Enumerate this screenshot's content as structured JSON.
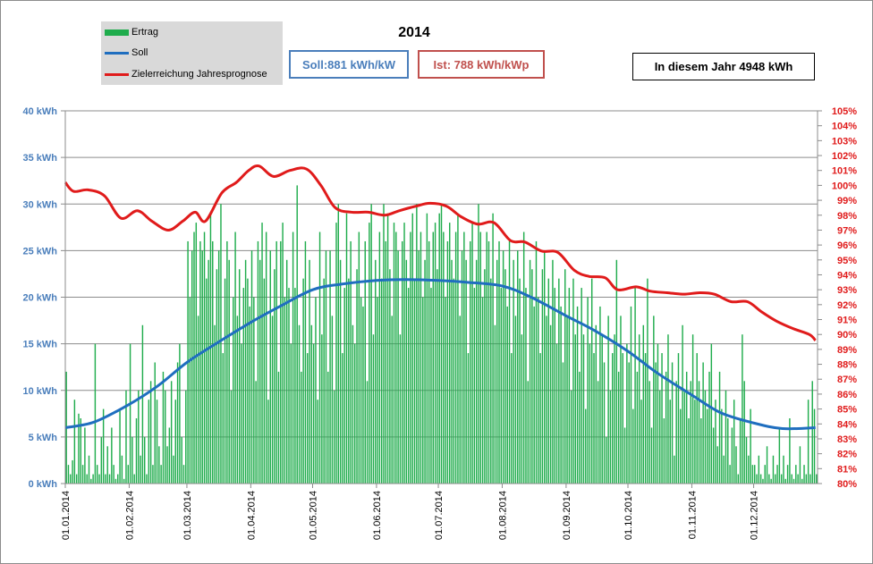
{
  "chart_data": {
    "type": "bar",
    "title": "2014",
    "legend": {
      "placement": "top-left",
      "entries": [
        {
          "label": "Ertrag",
          "color": "#1fac4c",
          "kind": "bar"
        },
        {
          "label": "Soll",
          "color": "#1f6ebf",
          "kind": "line"
        },
        {
          "label": "Zielerreichung Jahresprognose",
          "color": "#e01b1b",
          "kind": "line"
        }
      ]
    },
    "info": {
      "soll": "Soll:881 kWh/kW",
      "ist": "Ist: 788 kWh/kWp",
      "year": "In diesem Jahr 4948 kWh"
    },
    "x_axis": {
      "type": "date",
      "range": [
        "01.01.2014",
        "31.12.2014"
      ],
      "tick_labels": [
        "01.01.2014",
        "01.02.2014",
        "01.03.2014",
        "01.04.2014",
        "01.05.2014",
        "01.06.2014",
        "01.07.2014",
        "01.08.2014",
        "01.09.2014",
        "01.10.2014",
        "01.11.2014",
        "01.12.2014"
      ]
    },
    "y_axis_left": {
      "range": [
        0,
        40
      ],
      "unit": "kWh",
      "tick_labels": [
        "0 kWh",
        "5 kWh",
        "10 kWh",
        "15 kWh",
        "20 kWh",
        "25 kWh",
        "30 kWh",
        "35 kWh",
        "40 kWh"
      ]
    },
    "y_axis_right": {
      "range": [
        80,
        105
      ],
      "unit": "%",
      "tick_labels": [
        "80%",
        "81%",
        "82%",
        "83%",
        "84%",
        "85%",
        "86%",
        "87%",
        "88%",
        "89%",
        "90%",
        "91%",
        "92%",
        "93%",
        "94%",
        "95%",
        "96%",
        "97%",
        "98%",
        "99%",
        "100%",
        "101%",
        "102%",
        "103%",
        "104%",
        "105%"
      ]
    },
    "grid": true,
    "series": [
      {
        "name": "Ertrag",
        "axis": "left",
        "kind": "bar",
        "color": "#1fac4c",
        "monthly_daily_values": [
          [
            12,
            2,
            1,
            2.5,
            9,
            1,
            7.5,
            7,
            2,
            6,
            1,
            3,
            0.5,
            1,
            15,
            2,
            1,
            5,
            8,
            1,
            4,
            1,
            6,
            2,
            0.5,
            1,
            8,
            3,
            0.5,
            10,
            2
          ],
          [
            15,
            5,
            1,
            7,
            10,
            3,
            17,
            5,
            1,
            9,
            11,
            2,
            13,
            9,
            4,
            2,
            12,
            10,
            4,
            6,
            11,
            3,
            9,
            13,
            15,
            5,
            2,
            10
          ],
          [
            26,
            20,
            25,
            27,
            28,
            18,
            26,
            25,
            27,
            22,
            24,
            29,
            26,
            17,
            23,
            25,
            30,
            14,
            22,
            26,
            24,
            10,
            20,
            27,
            18,
            23,
            15,
            21,
            24,
            22,
            19
          ],
          [
            25,
            20,
            11,
            26,
            24,
            28,
            22,
            27,
            9,
            25,
            18,
            23,
            26,
            12,
            26,
            28,
            20,
            24,
            21,
            15,
            27,
            21,
            32,
            17,
            12,
            22,
            26,
            14,
            24,
            17
          ],
          [
            15,
            20,
            9,
            27,
            16,
            22,
            25,
            12,
            25,
            18,
            10,
            28,
            30,
            24,
            14,
            21,
            29,
            22,
            26,
            17,
            15,
            23,
            27,
            20,
            19,
            26,
            11,
            28,
            30,
            16,
            24
          ],
          [
            20,
            27,
            22,
            30,
            26,
            29,
            23,
            18,
            28,
            27,
            25,
            16,
            26,
            28,
            24,
            21,
            27,
            29,
            22,
            30,
            25,
            27,
            20,
            24,
            29,
            26,
            21,
            27,
            28,
            23
          ],
          [
            29,
            30,
            27,
            20,
            26,
            28,
            24,
            22,
            27,
            29,
            18,
            25,
            27,
            24,
            14,
            26,
            28,
            21,
            24,
            30,
            27,
            20,
            23,
            27,
            26,
            22,
            29,
            17,
            24,
            26,
            21
          ],
          [
            25,
            23,
            19,
            26,
            14,
            24,
            18,
            25,
            22,
            16,
            27,
            21,
            11,
            24,
            23,
            19,
            26,
            20,
            14,
            23,
            25,
            18,
            22,
            17,
            24,
            21,
            15,
            22,
            19,
            13,
            23
          ],
          [
            18,
            21,
            10,
            22,
            16,
            19,
            12,
            21,
            16,
            8,
            20,
            15,
            22,
            14,
            17,
            11,
            19,
            16,
            13,
            5,
            18,
            10,
            14,
            16,
            24,
            12,
            18,
            14,
            6,
            15
          ],
          [
            13,
            19,
            8,
            21,
            12,
            16,
            9,
            17,
            14,
            22,
            11,
            6,
            18,
            13,
            15,
            10,
            14,
            7,
            12,
            16,
            9,
            13,
            3,
            11,
            14,
            8,
            17,
            10,
            12,
            7,
            11
          ],
          [
            16,
            9,
            14,
            11,
            7,
            13,
            10,
            8,
            12,
            15,
            6,
            9,
            4,
            12,
            8,
            3,
            10,
            7,
            2,
            6,
            9,
            4,
            1,
            7,
            16,
            11,
            5,
            3,
            8,
            2
          ],
          [
            2,
            1,
            3,
            1,
            0.5,
            2,
            4,
            1,
            0.5,
            3,
            1,
            2,
            6,
            1,
            3,
            0.5,
            2,
            7,
            1,
            0.5,
            2,
            1,
            4,
            0.5,
            2,
            1,
            9,
            1,
            11,
            8,
            1
          ]
        ]
      },
      {
        "name": "Soll",
        "axis": "left",
        "kind": "line",
        "color": "#1f6ebf",
        "points": [
          {
            "x": "01.01.2014",
            "y": 6.0
          },
          {
            "x": "15.01.2014",
            "y": 6.6
          },
          {
            "x": "01.02.2014",
            "y": 8.5
          },
          {
            "x": "15.02.2014",
            "y": 10.5
          },
          {
            "x": "01.03.2014",
            "y": 13.0
          },
          {
            "x": "15.03.2014",
            "y": 15.0
          },
          {
            "x": "01.04.2014",
            "y": 17.3
          },
          {
            "x": "15.04.2014",
            "y": 19.0
          },
          {
            "x": "01.05.2014",
            "y": 20.8
          },
          {
            "x": "15.05.2014",
            "y": 21.4
          },
          {
            "x": "01.06.2014",
            "y": 21.8
          },
          {
            "x": "15.06.2014",
            "y": 21.9
          },
          {
            "x": "01.07.2014",
            "y": 21.8
          },
          {
            "x": "15.07.2014",
            "y": 21.6
          },
          {
            "x": "01.08.2014",
            "y": 21.2
          },
          {
            "x": "15.08.2014",
            "y": 20.0
          },
          {
            "x": "01.09.2014",
            "y": 18.0
          },
          {
            "x": "15.09.2014",
            "y": 16.4
          },
          {
            "x": "01.10.2014",
            "y": 14.2
          },
          {
            "x": "15.10.2014",
            "y": 11.9
          },
          {
            "x": "01.11.2014",
            "y": 9.5
          },
          {
            "x": "15.11.2014",
            "y": 7.6
          },
          {
            "x": "01.12.2014",
            "y": 6.5
          },
          {
            "x": "15.12.2014",
            "y": 5.9
          },
          {
            "x": "31.12.2014",
            "y": 6.0
          }
        ]
      },
      {
        "name": "Zielerreichung Jahresprognose",
        "axis": "right",
        "kind": "line",
        "color": "#e01b1b",
        "points": [
          {
            "x": "01.01.2014",
            "y": 100.2
          },
          {
            "x": "05.01.2014",
            "y": 99.6
          },
          {
            "x": "12.01.2014",
            "y": 99.7
          },
          {
            "x": "20.01.2014",
            "y": 99.3
          },
          {
            "x": "28.01.2014",
            "y": 97.8
          },
          {
            "x": "05.02.2014",
            "y": 98.3
          },
          {
            "x": "12.02.2014",
            "y": 97.6
          },
          {
            "x": "20.02.2014",
            "y": 97.0
          },
          {
            "x": "27.02.2014",
            "y": 97.6
          },
          {
            "x": "05.03.2014",
            "y": 98.2
          },
          {
            "x": "10.03.2014",
            "y": 97.6
          },
          {
            "x": "18.03.2014",
            "y": 99.5
          },
          {
            "x": "25.03.2014",
            "y": 100.2
          },
          {
            "x": "31.03.2014",
            "y": 101.0
          },
          {
            "x": "05.04.2014",
            "y": 101.3
          },
          {
            "x": "12.04.2014",
            "y": 100.6
          },
          {
            "x": "20.04.2014",
            "y": 101.0
          },
          {
            "x": "28.04.2014",
            "y": 101.1
          },
          {
            "x": "05.05.2014",
            "y": 100.0
          },
          {
            "x": "12.05.2014",
            "y": 98.5
          },
          {
            "x": "20.05.2014",
            "y": 98.2
          },
          {
            "x": "28.05.2014",
            "y": 98.2
          },
          {
            "x": "05.06.2014",
            "y": 98.0
          },
          {
            "x": "12.06.2014",
            "y": 98.3
          },
          {
            "x": "20.06.2014",
            "y": 98.6
          },
          {
            "x": "27.06.2014",
            "y": 98.8
          },
          {
            "x": "05.07.2014",
            "y": 98.6
          },
          {
            "x": "12.07.2014",
            "y": 97.9
          },
          {
            "x": "20.07.2014",
            "y": 97.4
          },
          {
            "x": "28.07.2014",
            "y": 97.5
          },
          {
            "x": "05.08.2014",
            "y": 96.3
          },
          {
            "x": "12.08.2014",
            "y": 96.2
          },
          {
            "x": "20.08.2014",
            "y": 95.6
          },
          {
            "x": "28.08.2014",
            "y": 95.5
          },
          {
            "x": "05.09.2014",
            "y": 94.3
          },
          {
            "x": "12.09.2014",
            "y": 93.9
          },
          {
            "x": "20.09.2014",
            "y": 93.8
          },
          {
            "x": "26.09.2014",
            "y": 93.0
          },
          {
            "x": "05.10.2014",
            "y": 93.2
          },
          {
            "x": "12.10.2014",
            "y": 92.9
          },
          {
            "x": "20.10.2014",
            "y": 92.8
          },
          {
            "x": "28.10.2014",
            "y": 92.7
          },
          {
            "x": "05.11.2014",
            "y": 92.8
          },
          {
            "x": "12.11.2014",
            "y": 92.7
          },
          {
            "x": "20.11.2014",
            "y": 92.2
          },
          {
            "x": "28.11.2014",
            "y": 92.2
          },
          {
            "x": "05.12.2014",
            "y": 91.5
          },
          {
            "x": "12.12.2014",
            "y": 90.9
          },
          {
            "x": "20.12.2014",
            "y": 90.4
          },
          {
            "x": "28.12.2014",
            "y": 90.0
          },
          {
            "x": "31.12.2014",
            "y": 89.6
          }
        ]
      }
    ]
  }
}
